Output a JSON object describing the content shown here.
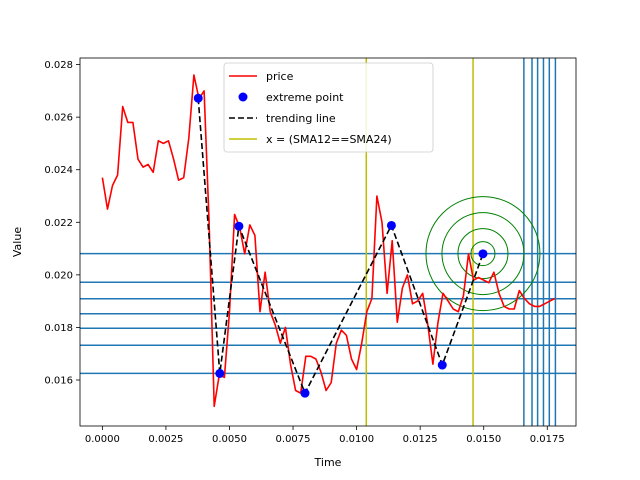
{
  "chart_data": {
    "type": "line",
    "xlabel": "Time",
    "ylabel": "Value",
    "xlim": [
      -0.00088,
      0.01863
    ],
    "ylim": [
      0.01425,
      0.02825
    ],
    "x_ticks": [
      0.0,
      0.0025,
      0.005,
      0.0075,
      0.01,
      0.0125,
      0.015,
      0.0175
    ],
    "x_tick_labels": [
      "0.0000",
      "0.0025",
      "0.0050",
      "0.0075",
      "0.0100",
      "0.0125",
      "0.0150",
      "0.0175"
    ],
    "y_ticks": [
      0.016,
      0.018,
      0.02,
      0.022,
      0.024,
      0.026,
      0.028
    ],
    "y_tick_labels": [
      "0.016",
      "0.018",
      "0.020",
      "0.022",
      "0.024",
      "0.026",
      "0.028"
    ],
    "grid": false,
    "legend_position": "top-center",
    "series": [
      {
        "name": "price",
        "kind": "line",
        "color": "#ff0000",
        "x": [
          0.0,
          0.0002,
          0.0004,
          0.0006,
          0.0008,
          0.001,
          0.0012,
          0.0014,
          0.0016,
          0.0018,
          0.002,
          0.0022,
          0.0024,
          0.0026,
          0.0028,
          0.003,
          0.0032,
          0.0034,
          0.0036,
          0.0038,
          0.004,
          0.0042,
          0.0044,
          0.0046,
          0.0048,
          0.005,
          0.0052,
          0.0054,
          0.0056,
          0.0058,
          0.006,
          0.0062,
          0.0064,
          0.0066,
          0.0068,
          0.007,
          0.0072,
          0.0074,
          0.0076,
          0.0078,
          0.008,
          0.0082,
          0.0084,
          0.0086,
          0.0088,
          0.009,
          0.0092,
          0.0094,
          0.0096,
          0.0098,
          0.01,
          0.0102,
          0.0104,
          0.0106,
          0.0108,
          0.011,
          0.0112,
          0.0114,
          0.0116,
          0.0118,
          0.012,
          0.0122,
          0.0124,
          0.0126,
          0.0128,
          0.013,
          0.0132,
          0.0134,
          0.0136,
          0.0138,
          0.014,
          0.0142,
          0.0144,
          0.0146,
          0.0148,
          0.015,
          0.0152,
          0.0154,
          0.0156,
          0.0158,
          0.016,
          0.0162,
          0.0164,
          0.0166,
          0.0168,
          0.017,
          0.0172,
          0.0174,
          0.0176,
          0.0178
        ],
        "y": [
          0.0237,
          0.0225,
          0.0234,
          0.0238,
          0.0264,
          0.0258,
          0.0258,
          0.0244,
          0.0241,
          0.0242,
          0.0239,
          0.0251,
          0.025,
          0.0251,
          0.0244,
          0.0236,
          0.0237,
          0.0252,
          0.0276,
          0.0267,
          0.027,
          0.022,
          0.015,
          0.0162,
          0.0161,
          0.0186,
          0.0223,
          0.0218,
          0.0208,
          0.0219,
          0.0215,
          0.0186,
          0.0201,
          0.0186,
          0.0181,
          0.0174,
          0.018,
          0.0166,
          0.0156,
          0.0155,
          0.0169,
          0.0169,
          0.0168,
          0.0163,
          0.0156,
          0.0159,
          0.0174,
          0.0179,
          0.0177,
          0.0168,
          0.0164,
          0.0174,
          0.0186,
          0.0191,
          0.023,
          0.022,
          0.0193,
          0.0213,
          0.0182,
          0.0195,
          0.02,
          0.0189,
          0.019,
          0.0193,
          0.0181,
          0.0166,
          0.0182,
          0.0193,
          0.019,
          0.0187,
          0.0186,
          0.0192,
          0.0208,
          0.0198,
          0.0199,
          0.0198,
          0.0197,
          0.0201,
          0.0193,
          0.0188,
          0.0187,
          0.0187,
          0.0194,
          0.0191,
          0.0189,
          0.0188,
          0.0188,
          0.0189,
          0.019,
          0.0191
        ]
      },
      {
        "name": "extreme point",
        "kind": "scatter",
        "color": "#0000ff",
        "x": [
          0.00377,
          0.00462,
          0.00537,
          0.00797,
          0.01137,
          0.01337,
          0.01497
        ],
        "y": [
          0.02672,
          0.01625,
          0.02185,
          0.0155,
          0.02188,
          0.01657,
          0.0208
        ]
      },
      {
        "name": "trending line",
        "kind": "line",
        "style": "dashed",
        "color": "#000000",
        "x": [
          0.00377,
          0.00462,
          0.00537,
          0.00797,
          0.01137,
          0.01337,
          0.01497
        ],
        "y": [
          0.02672,
          0.01625,
          0.02185,
          0.0155,
          0.02188,
          0.01657,
          0.0208
        ]
      },
      {
        "name": "x = (SMA12==SMA24)",
        "kind": "vline",
        "color": "#bfbf00",
        "x": [
          0.01038,
          0.01458
        ]
      }
    ],
    "horizontal_lines": {
      "color": "#1f77b4",
      "y": [
        0.02081,
        0.01972,
        0.01909,
        0.01852,
        0.01797,
        0.01732,
        0.01625
      ]
    },
    "vertical_lines": {
      "color": "#1f77b4",
      "x": [
        0.01658,
        0.0169,
        0.01712,
        0.01735,
        0.01758,
        0.01782
      ]
    },
    "concentric_circles": {
      "color": "#008000",
      "center": [
        0.01497,
        0.02081
      ],
      "radii_px": [
        12,
        25,
        41,
        57
      ]
    }
  }
}
